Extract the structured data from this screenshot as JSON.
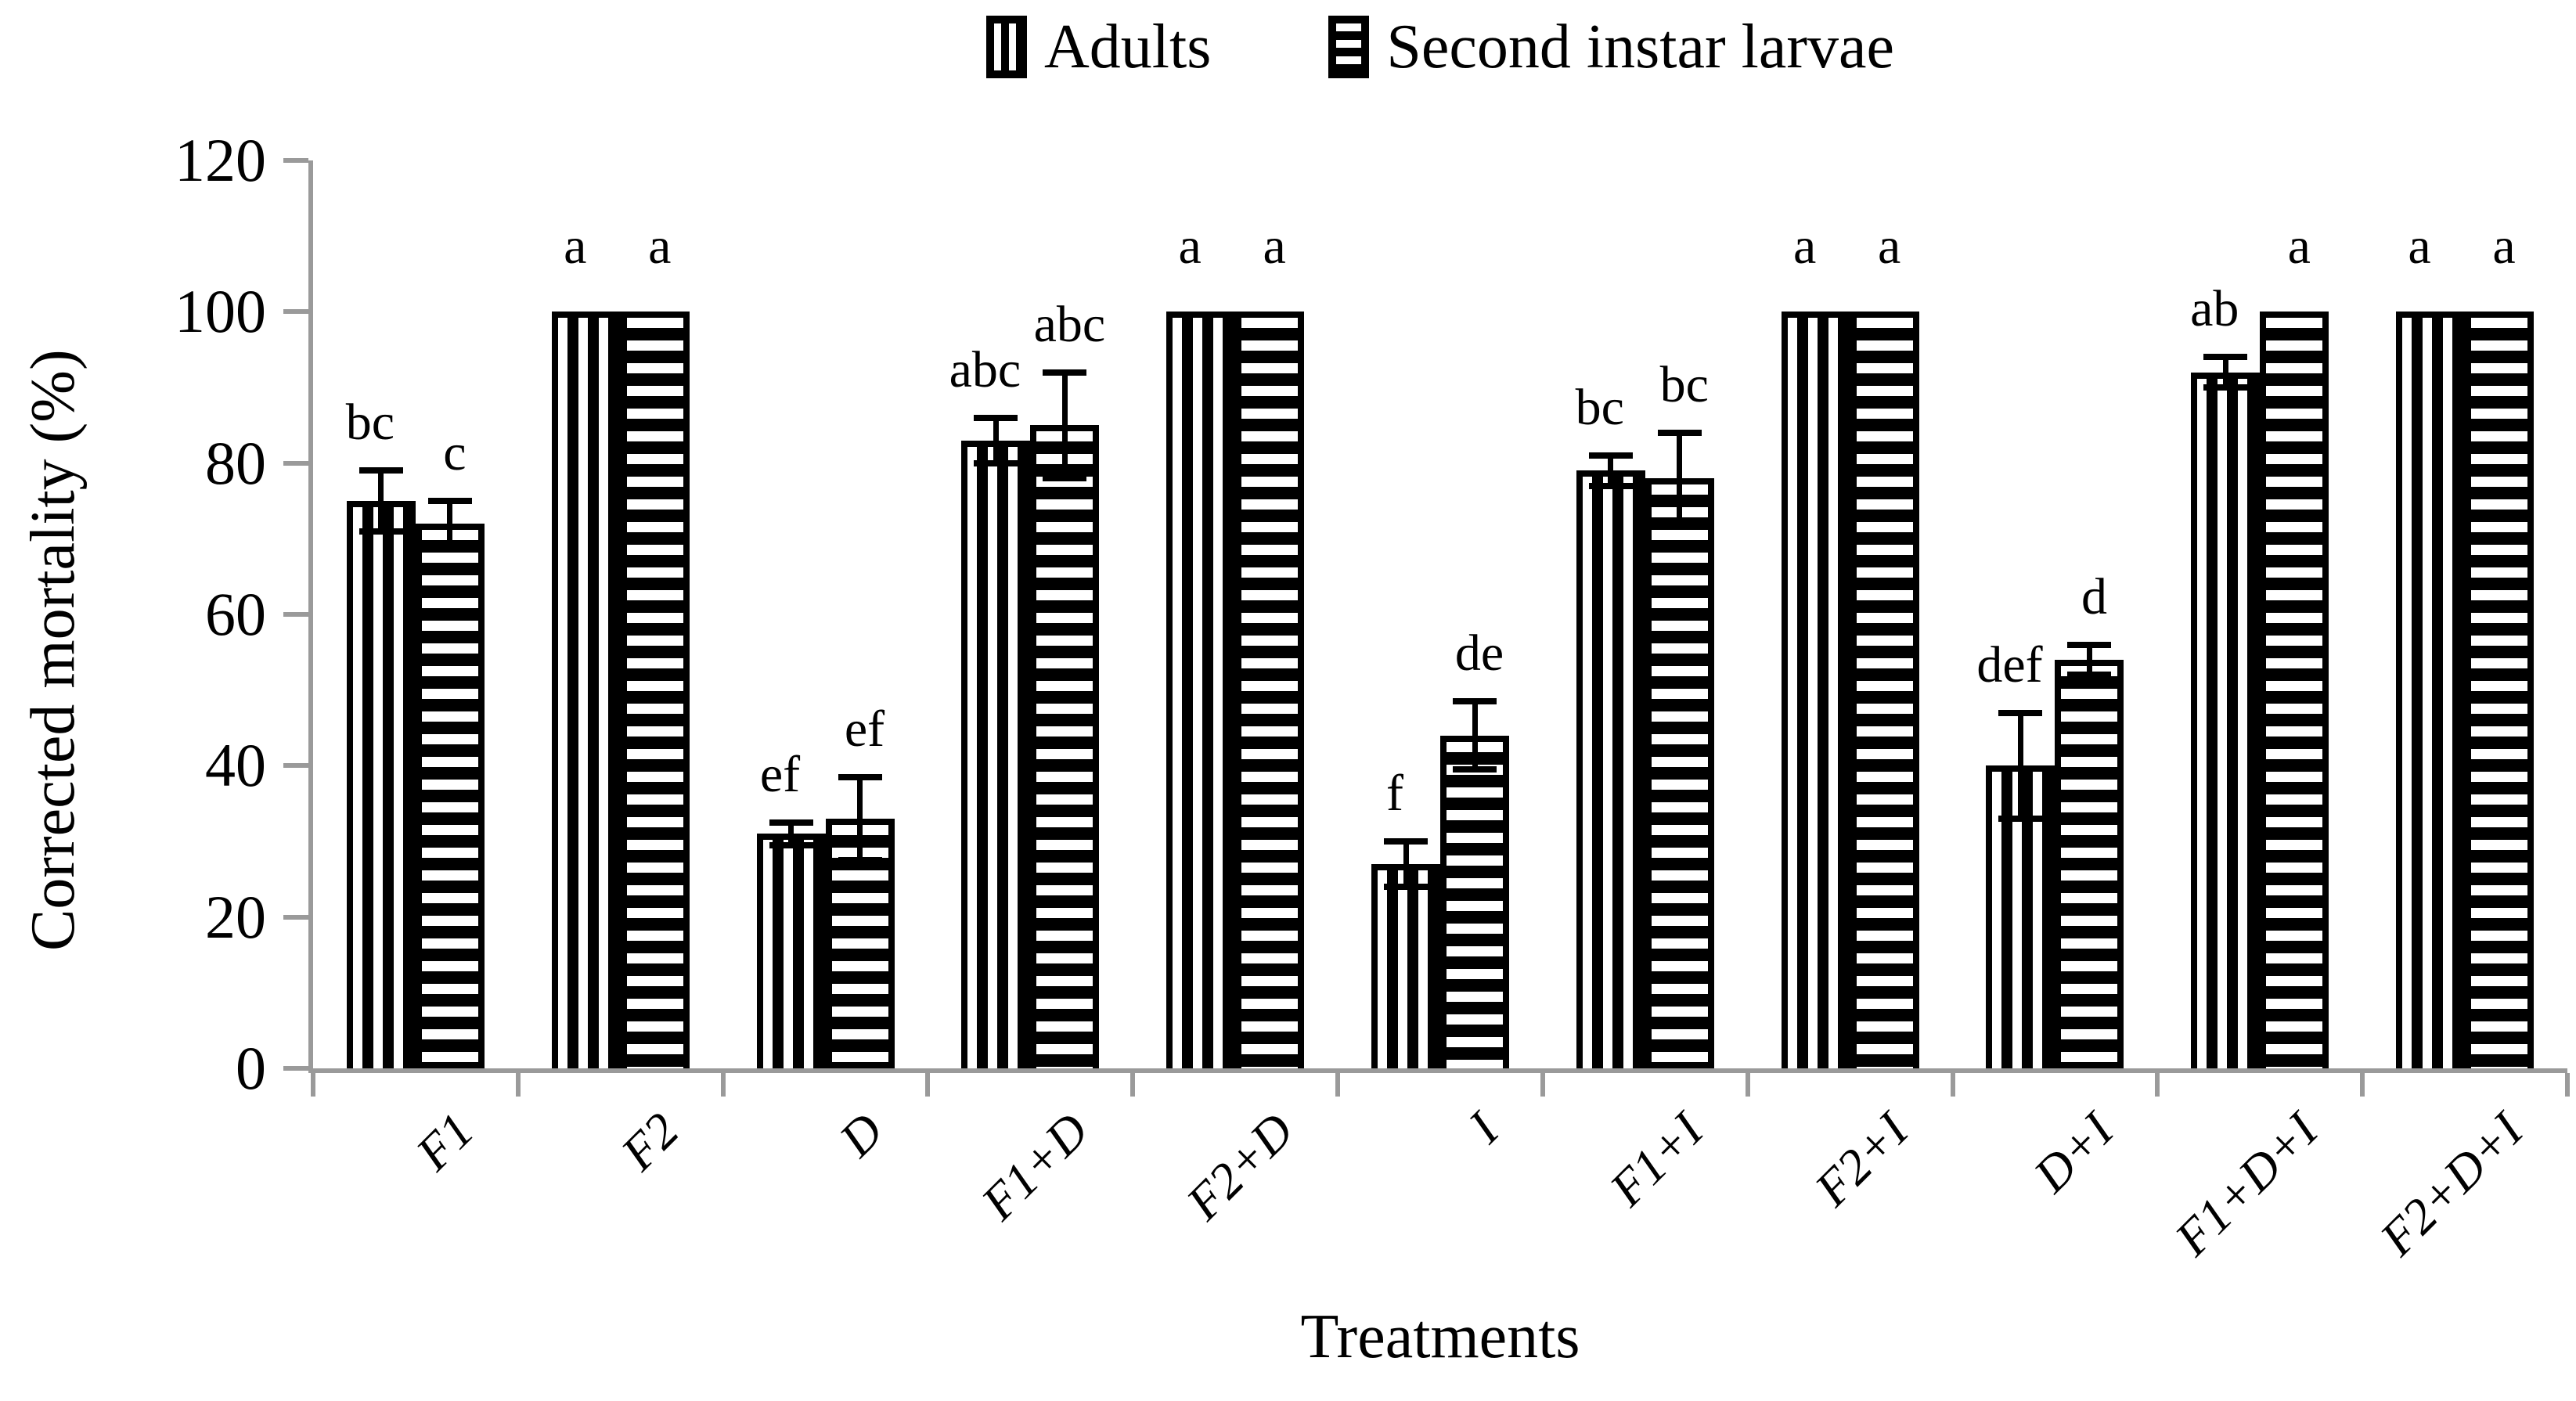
{
  "legend": {
    "adults_label": "Adults",
    "larvae_label": "Second instar larvae"
  },
  "axes": {
    "y_title": "Corrected mortality  (%)",
    "x_title": "Treatments"
  },
  "colors": {
    "axis_gray": "#9a9a9a",
    "ink": "#000000",
    "background": "#ffffff"
  },
  "chart_data": {
    "type": "bar",
    "title": "",
    "xlabel": "Treatments",
    "ylabel": "Corrected mortality  (%)",
    "ylim": [
      0,
      120
    ],
    "yticks": [
      0,
      20,
      40,
      60,
      80,
      100,
      120
    ],
    "grid": false,
    "legend_position": "top-center",
    "categories": [
      "F1",
      "F2",
      "D",
      "F1+D",
      "F2+D",
      "I",
      "F1+I",
      "F2+I",
      "D+I",
      "F1+D+I",
      "F2+D+I"
    ],
    "series": [
      {
        "name": "Adults",
        "pattern": "vertical-stripes",
        "values": [
          75,
          100,
          31,
          83,
          100,
          27,
          79,
          100,
          40,
          92,
          100
        ],
        "errors": [
          4,
          0,
          1.5,
          3,
          0,
          3,
          2,
          0,
          7,
          2,
          0
        ],
        "letters": [
          "bc",
          "a",
          "ef",
          "abc",
          "a",
          "f",
          "bc",
          "a",
          "def",
          "ab",
          "a"
        ]
      },
      {
        "name": "Second instar larvae",
        "pattern": "horizontal-stripes",
        "values": [
          72,
          100,
          33,
          85,
          100,
          44,
          78,
          100,
          54,
          100,
          100
        ],
        "errors": [
          3,
          0,
          5.5,
          7,
          0,
          4.5,
          6,
          0,
          2,
          0,
          0
        ],
        "letters": [
          "c",
          "a",
          "ef",
          "abc",
          "a",
          "de",
          "bc",
          "a",
          "d",
          "a",
          "a"
        ]
      }
    ]
  }
}
